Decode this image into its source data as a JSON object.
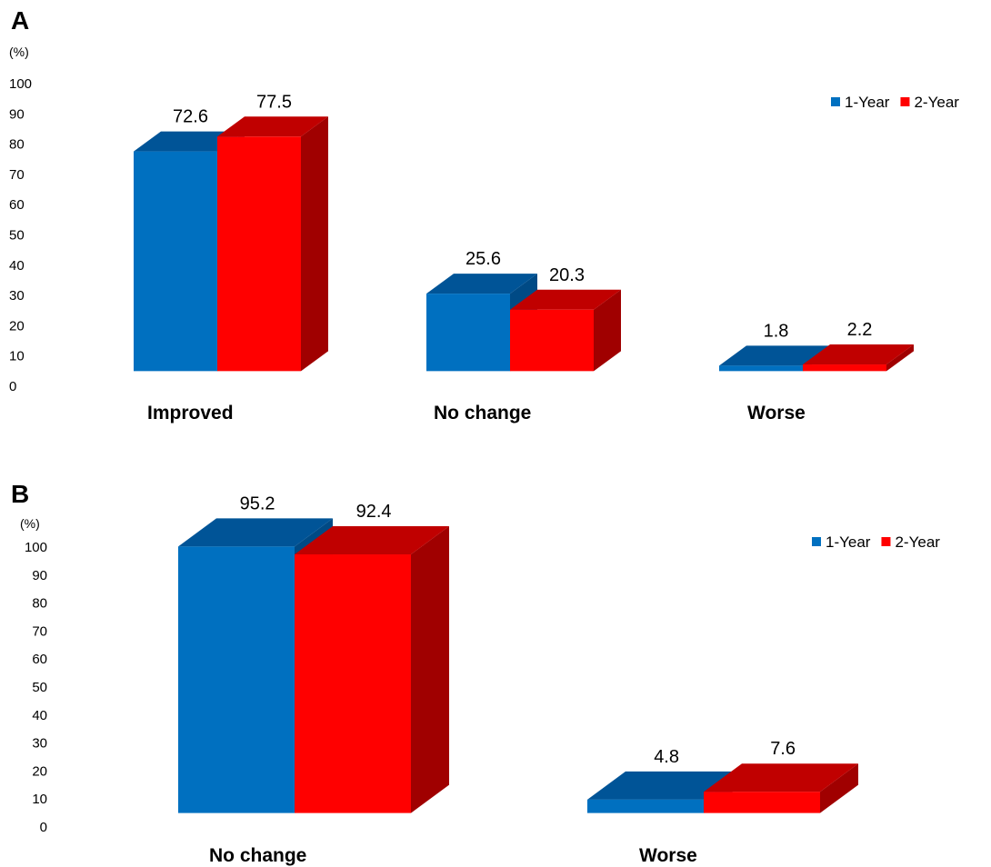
{
  "colors": {
    "one_year": {
      "front": "#0070c0",
      "top": "#005497",
      "side": "#004a85"
    },
    "two_year": {
      "front": "#ff0000",
      "top": "#c00000",
      "side": "#a00000"
    }
  },
  "chart_data": [
    {
      "type": "bar",
      "panel_label": "A",
      "unit_label": "(%)",
      "categories": [
        "Improved",
        "No change",
        "Worse"
      ],
      "series": [
        {
          "name": "1-Year",
          "values": [
            72.6,
            25.6,
            1.8
          ]
        },
        {
          "name": "2-Year",
          "values": [
            77.5,
            20.3,
            2.2
          ]
        }
      ],
      "ylim": [
        0,
        100
      ],
      "yticks": [
        "0",
        "10",
        "20",
        "30",
        "40",
        "50",
        "60",
        "70",
        "80",
        "90",
        "100"
      ],
      "legend": "top-right",
      "grid": false,
      "style": "3d"
    },
    {
      "type": "bar",
      "panel_label": "B",
      "unit_label": "(%)",
      "categories": [
        "No change",
        "Worse"
      ],
      "series": [
        {
          "name": "1-Year",
          "values": [
            95.2,
            4.8
          ]
        },
        {
          "name": "2-Year",
          "values": [
            92.4,
            7.6
          ]
        }
      ],
      "ylim": [
        0,
        100
      ],
      "yticks": [
        "0",
        "10",
        "20",
        "30",
        "40",
        "50",
        "60",
        "70",
        "80",
        "90",
        "100"
      ],
      "legend": "top-right",
      "grid": false,
      "style": "3d"
    }
  ]
}
